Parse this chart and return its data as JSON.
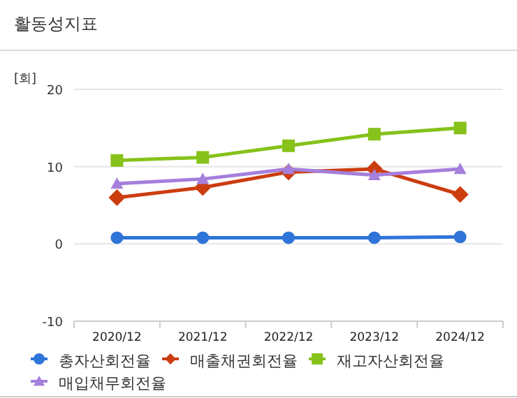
{
  "chart_data": {
    "type": "line",
    "title": "활동성지표",
    "ylabel": "[회]",
    "categories": [
      "2020/12",
      "2021/12",
      "2022/12",
      "2023/12",
      "2024/12"
    ],
    "series": [
      {
        "name": "총자산회전율",
        "color": "#2f74d8",
        "marker": "circle",
        "values": [
          0.8,
          0.8,
          0.8,
          0.8,
          0.9
        ]
      },
      {
        "name": "매출채권회전율",
        "color": "#cc3d10",
        "marker": "diamond",
        "values": [
          6.0,
          7.3,
          9.3,
          9.7,
          6.4
        ]
      },
      {
        "name": "재고자산회전율",
        "color": "#86c21a",
        "marker": "square",
        "values": [
          10.8,
          11.2,
          12.7,
          14.2,
          15.0
        ]
      },
      {
        "name": "매입채무회전율",
        "color": "#a57fdc",
        "marker": "triangle",
        "values": [
          7.8,
          8.4,
          9.7,
          8.9,
          9.7
        ]
      }
    ],
    "ylim": [
      -10,
      20
    ],
    "yticks": [
      -10,
      0,
      10,
      20
    ],
    "grid": "y",
    "legend": "bottom"
  }
}
